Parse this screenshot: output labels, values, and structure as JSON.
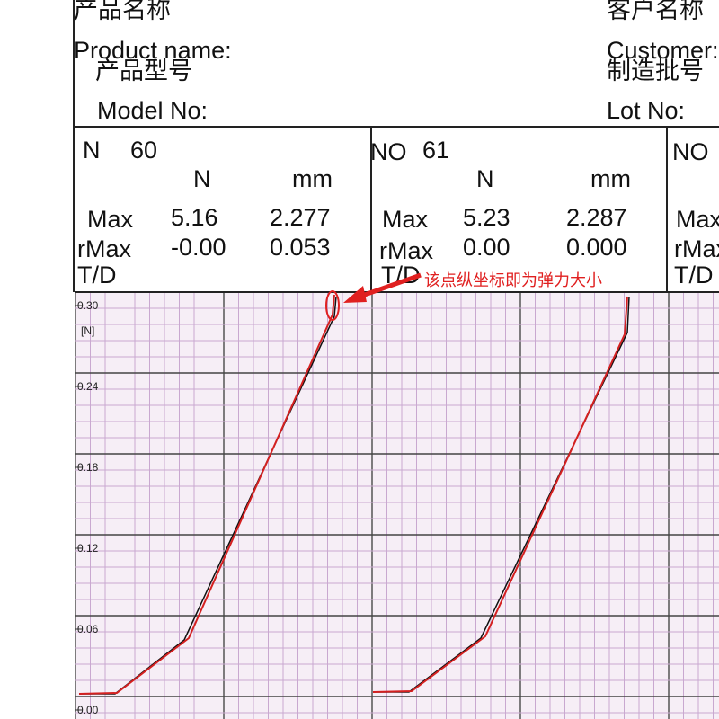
{
  "header": {
    "product_name_cn": "产品名称",
    "product_name": "Product name:",
    "model_cn": "产品型号",
    "model": "Model No:",
    "customer_cn": "客户名称",
    "customer": "Customer:",
    "lot_cn": "制造批号",
    "lot": "Lot No:"
  },
  "panels": [
    {
      "no_label": "N",
      "no": "60",
      "unit_force": "N",
      "unit_disp": "mm",
      "rows": [
        [
          "Max",
          "5.16",
          "2.277"
        ],
        [
          "rMax",
          "-0.00",
          "0.053"
        ],
        [
          "T/D"
        ]
      ]
    },
    {
      "no_label": "NO",
      "no": "61",
      "unit_force": "N",
      "unit_disp": "mm",
      "rows": [
        [
          "Max",
          "5.23",
          "2.287"
        ],
        [
          "rMax",
          "0.00",
          "0.000"
        ],
        [
          "T/D"
        ]
      ]
    },
    {
      "no_label": "NO",
      "rows": [
        [
          "Max"
        ],
        [
          "rMax"
        ],
        [
          "T/D"
        ]
      ]
    }
  ],
  "graph": {
    "y_unit": "[N]",
    "ylim": [
      0,
      0.3
    ],
    "yticks": [
      {
        "value": 0.3,
        "label": "0.30"
      },
      {
        "value": 0.24,
        "label": "0.24"
      },
      {
        "value": 0.18,
        "label": "0.18"
      },
      {
        "value": 0.12,
        "label": "0.12"
      },
      {
        "value": 0.06,
        "label": "0.06"
      },
      {
        "value": 0,
        "label": "0.00"
      }
    ],
    "annotation": "该点纵坐标即为弹力大小"
  }
}
